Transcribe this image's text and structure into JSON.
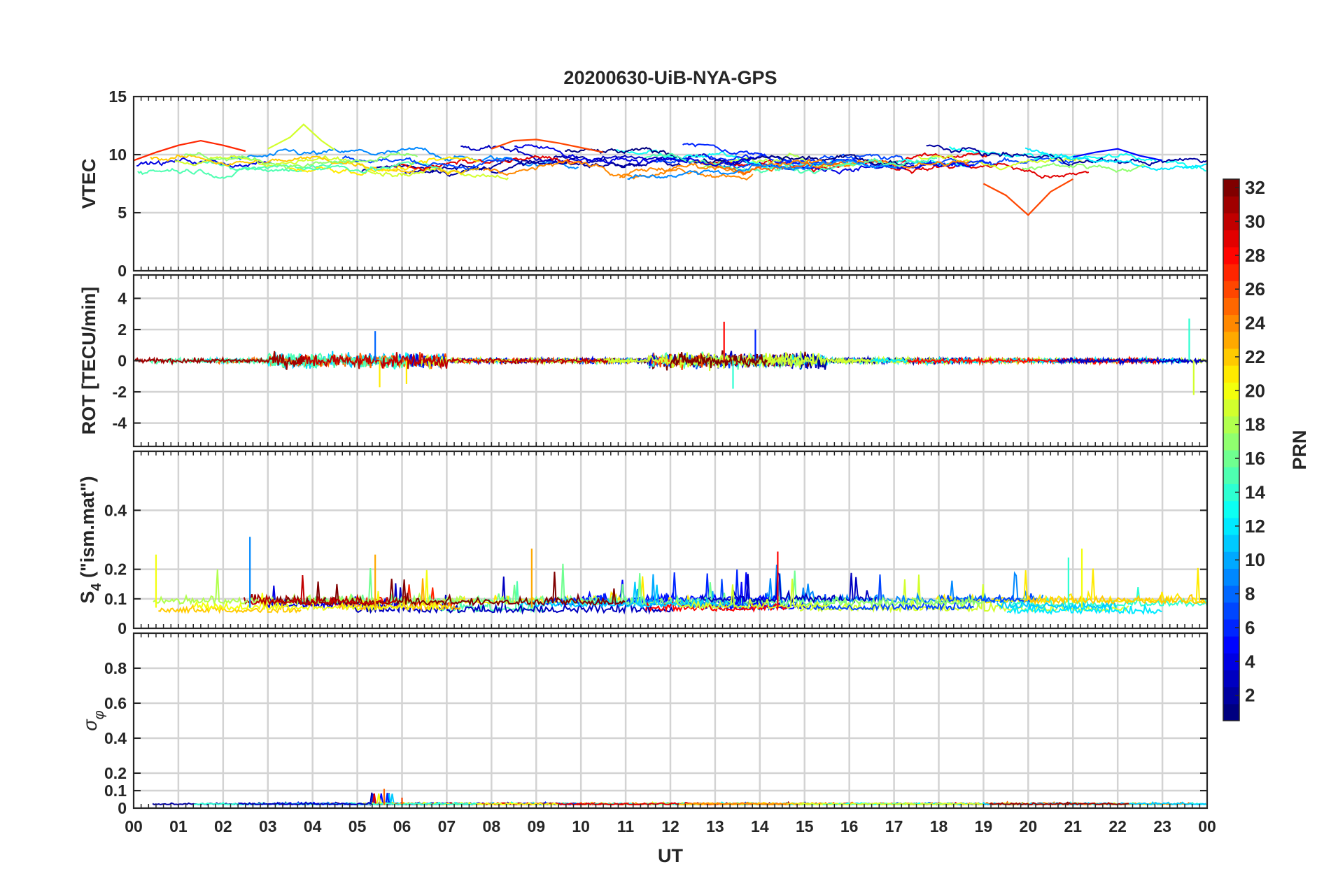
{
  "chart_data": {
    "type": "line",
    "title": "20200630-UiB-NYA-GPS",
    "xlabel": "UT",
    "x_tick_labels": [
      "00",
      "01",
      "02",
      "03",
      "04",
      "05",
      "06",
      "07",
      "08",
      "09",
      "10",
      "11",
      "12",
      "13",
      "14",
      "15",
      "16",
      "17",
      "18",
      "19",
      "20",
      "21",
      "22",
      "23",
      "00"
    ],
    "xlim_hours": [
      0,
      24
    ],
    "grid": true,
    "colorbar": {
      "label": "PRN",
      "range": [
        1,
        32
      ],
      "ticks": [
        2,
        4,
        6,
        8,
        10,
        12,
        14,
        16,
        18,
        20,
        22,
        24,
        26,
        28,
        30,
        32
      ],
      "colormap": "jet",
      "placement": "right"
    },
    "panels": [
      {
        "id": "vtec",
        "ylabel": "VTEC",
        "ylim": [
          0,
          15
        ],
        "yticks": [
          0,
          5,
          10,
          15
        ],
        "description_values": "per-PRN VTEC traces mostly between 6 and 12 TECU",
        "typical_range": [
          4.7,
          12.8
        ],
        "sample_series": [
          {
            "prn": 27,
            "hour": [
              0.0,
              0.5,
              1.0,
              1.5,
              2.0,
              2.5
            ],
            "value": [
              9.5,
              10.2,
              10.8,
              11.2,
              10.8,
              10.3
            ]
          },
          {
            "prn": 19,
            "hour": [
              3.0,
              3.5,
              3.8,
              4.2,
              4.5
            ],
            "value": [
              10.5,
              11.5,
              12.6,
              11.2,
              10.4
            ]
          },
          {
            "prn": 26,
            "hour": [
              8.0,
              8.5,
              9.0,
              9.5,
              10.0,
              10.5
            ],
            "value": [
              10.5,
              11.2,
              11.3,
              11.0,
              10.6,
              10.2
            ]
          },
          {
            "prn": 26,
            "hour": [
              19.0,
              19.5,
              20.0,
              20.5,
              21.0
            ],
            "value": [
              7.5,
              6.5,
              4.8,
              6.8,
              7.9
            ]
          },
          {
            "prn": 5,
            "hour": [
              21.0,
              21.5,
              22.0,
              22.5,
              23.0
            ],
            "value": [
              9.8,
              10.2,
              10.5,
              9.9,
              9.5
            ]
          }
        ]
      },
      {
        "id": "rot",
        "ylabel": "ROT [TECU/min]",
        "ylim": [
          -5.5,
          5.5
        ],
        "yticks": [
          -4,
          -2,
          0,
          2,
          4
        ],
        "typical_range": [
          -2.3,
          2.7
        ],
        "peaks": [
          {
            "hour": 5.4,
            "value": 1.9
          },
          {
            "hour": 5.5,
            "value": -1.7
          },
          {
            "hour": 6.1,
            "value": -1.5
          },
          {
            "hour": 13.2,
            "value": 2.5
          },
          {
            "hour": 13.4,
            "value": -1.8
          },
          {
            "hour": 13.9,
            "value": 2.0
          },
          {
            "hour": 23.6,
            "value": 2.7
          },
          {
            "hour": 23.7,
            "value": -2.2
          }
        ]
      },
      {
        "id": "s4",
        "ylabel_main": "S",
        "ylabel_sub": "4",
        "ylabel_rest": " (\"ism.mat\")",
        "ylim": [
          0,
          0.6
        ],
        "yticks": [
          0,
          0.1,
          0.2,
          0.4
        ],
        "ytick_labels": [
          "0",
          "0.1",
          "0.2",
          "0.4"
        ],
        "typical_range": [
          0.03,
          0.31
        ],
        "peaks": [
          {
            "hour": 0.5,
            "value": 0.25
          },
          {
            "hour": 2.6,
            "value": 0.31
          },
          {
            "hour": 5.4,
            "value": 0.25
          },
          {
            "hour": 8.9,
            "value": 0.27
          },
          {
            "hour": 14.4,
            "value": 0.26
          },
          {
            "hour": 20.9,
            "value": 0.24
          },
          {
            "hour": 21.2,
            "value": 0.27
          }
        ]
      },
      {
        "id": "sigma_phi",
        "ylabel_main": "σ",
        "ylabel_sub": "φ",
        "ylim": [
          0,
          1.0
        ],
        "yticks": [
          0,
          0.1,
          0.2,
          0.4,
          0.6,
          0.8
        ],
        "ytick_labels": [
          "0",
          "0.1",
          "0.2",
          "0.4",
          "0.6",
          "0.8"
        ],
        "typical_range": [
          0.0,
          0.11
        ],
        "peaks": [
          {
            "hour": 5.6,
            "value": 0.11
          },
          {
            "hour": 6.0,
            "value": 0.06
          }
        ]
      }
    ]
  }
}
